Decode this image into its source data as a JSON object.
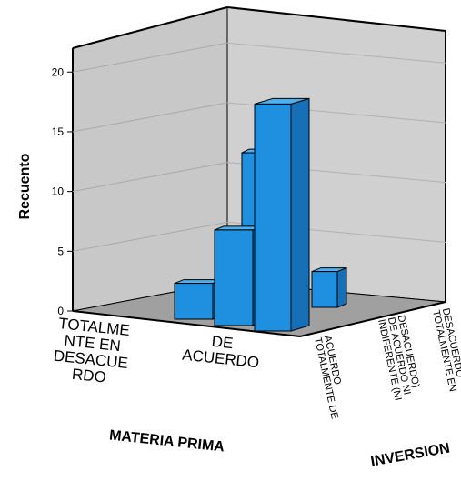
{
  "chart_data": {
    "type": "bar",
    "ylabel": "Recuento",
    "xlabel": "MATERIA PRIMA",
    "zlabel": "INVERSION",
    "ylim": [
      0,
      22
    ],
    "yticks": [
      "0",
      "5",
      "10",
      "15",
      "20"
    ],
    "categories": [
      "TOTALME\nNTE EN\nDESACUE\nRDO",
      "DE\nACUERDO"
    ],
    "depth_categories": [
      "TOTALMENTE DE\nACUERDO",
      "INDIFERENTE (NI\nDE ACUERDO NI\nDESACUERDO)",
      "TOTALMENTE EN\nDESACUERDO"
    ],
    "series": [
      {
        "name": "TOTALMENTE DE ACUERDO",
        "values": [
          3,
          8
        ]
      },
      {
        "name": "INDIFERENTE (NI DE ACUERDO NI DESACUERDO)",
        "values": [
          0,
          14
        ]
      },
      {
        "name": "TOTALMENTE EN DESACUERDO",
        "values": [
          0,
          19
        ]
      }
    ],
    "extra_bars": [
      {
        "x_category": "DE\nACUERDO",
        "z_category": "TOTALMENTE EN\nDESACUERDO",
        "value": 3
      }
    ],
    "colors": {
      "bar_front": "#1f8fe0",
      "bar_top": "#4fb0f0",
      "bar_side": "#1570b8",
      "wall": "#c8c8c8",
      "floor": "#a0a0a0"
    }
  }
}
